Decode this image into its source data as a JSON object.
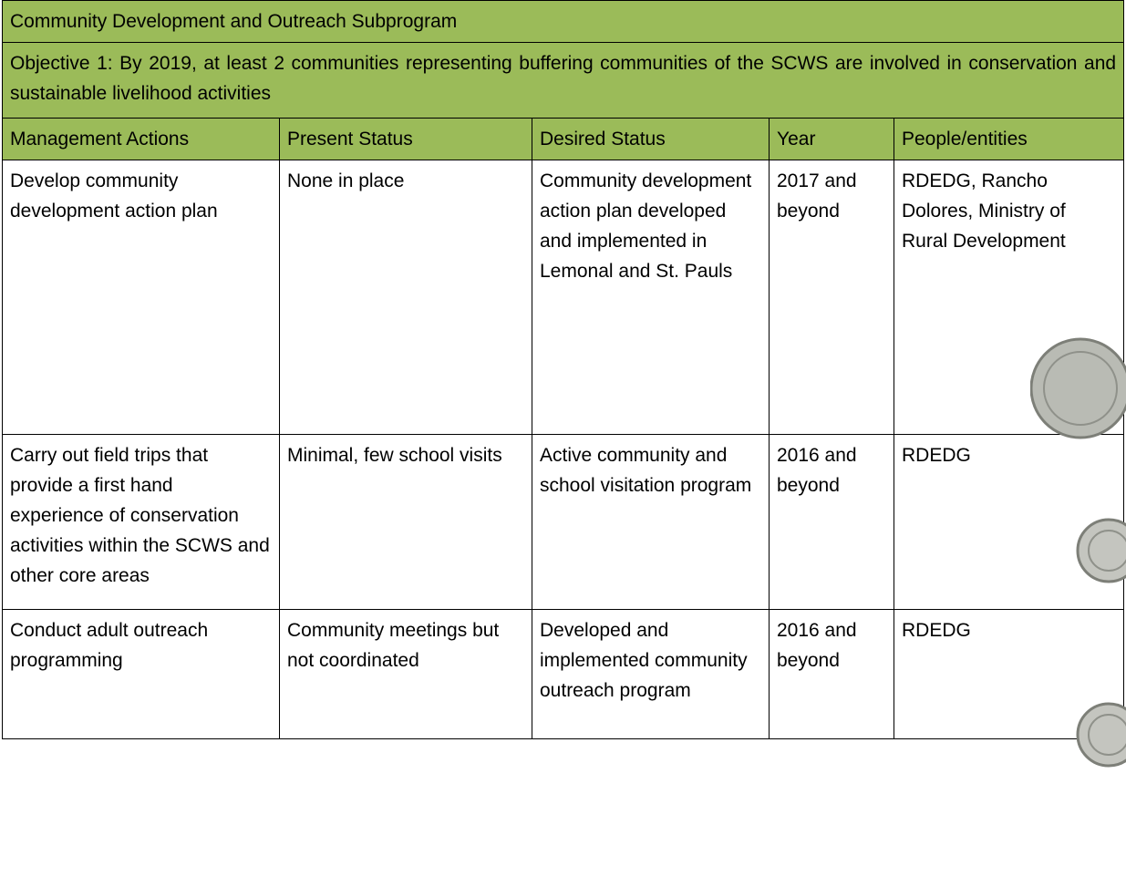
{
  "header": {
    "title": "Community Development and Outreach Subprogram",
    "objective": "Objective 1: By 2019, at least 2 communities representing buffering communities of the SCWS are involved in conservation and sustainable livelihood activities"
  },
  "table": {
    "columns": [
      "Management Actions",
      "Present Status",
      "Desired Status",
      "Year",
      "People/entities"
    ],
    "rows": [
      [
        "Develop community development action plan",
        "None in place",
        "Community development action plan developed and implemented in Lemonal and St. Pauls",
        "2017 and beyond",
        "RDEDG, Rancho Dolores, Ministry of Rural Development"
      ],
      [
        "Carry out field trips that provide a first hand experience of conservation activities within the SCWS and other core areas",
        "Minimal, few school visits",
        "Active community and school visitation program",
        "2016 and beyond",
        "RDEDG"
      ],
      [
        "Conduct adult outreach programming",
        "Community meetings but not coordinated",
        "Developed and implemented community outreach program",
        "2016 and beyond",
        "RDEDG"
      ]
    ]
  }
}
